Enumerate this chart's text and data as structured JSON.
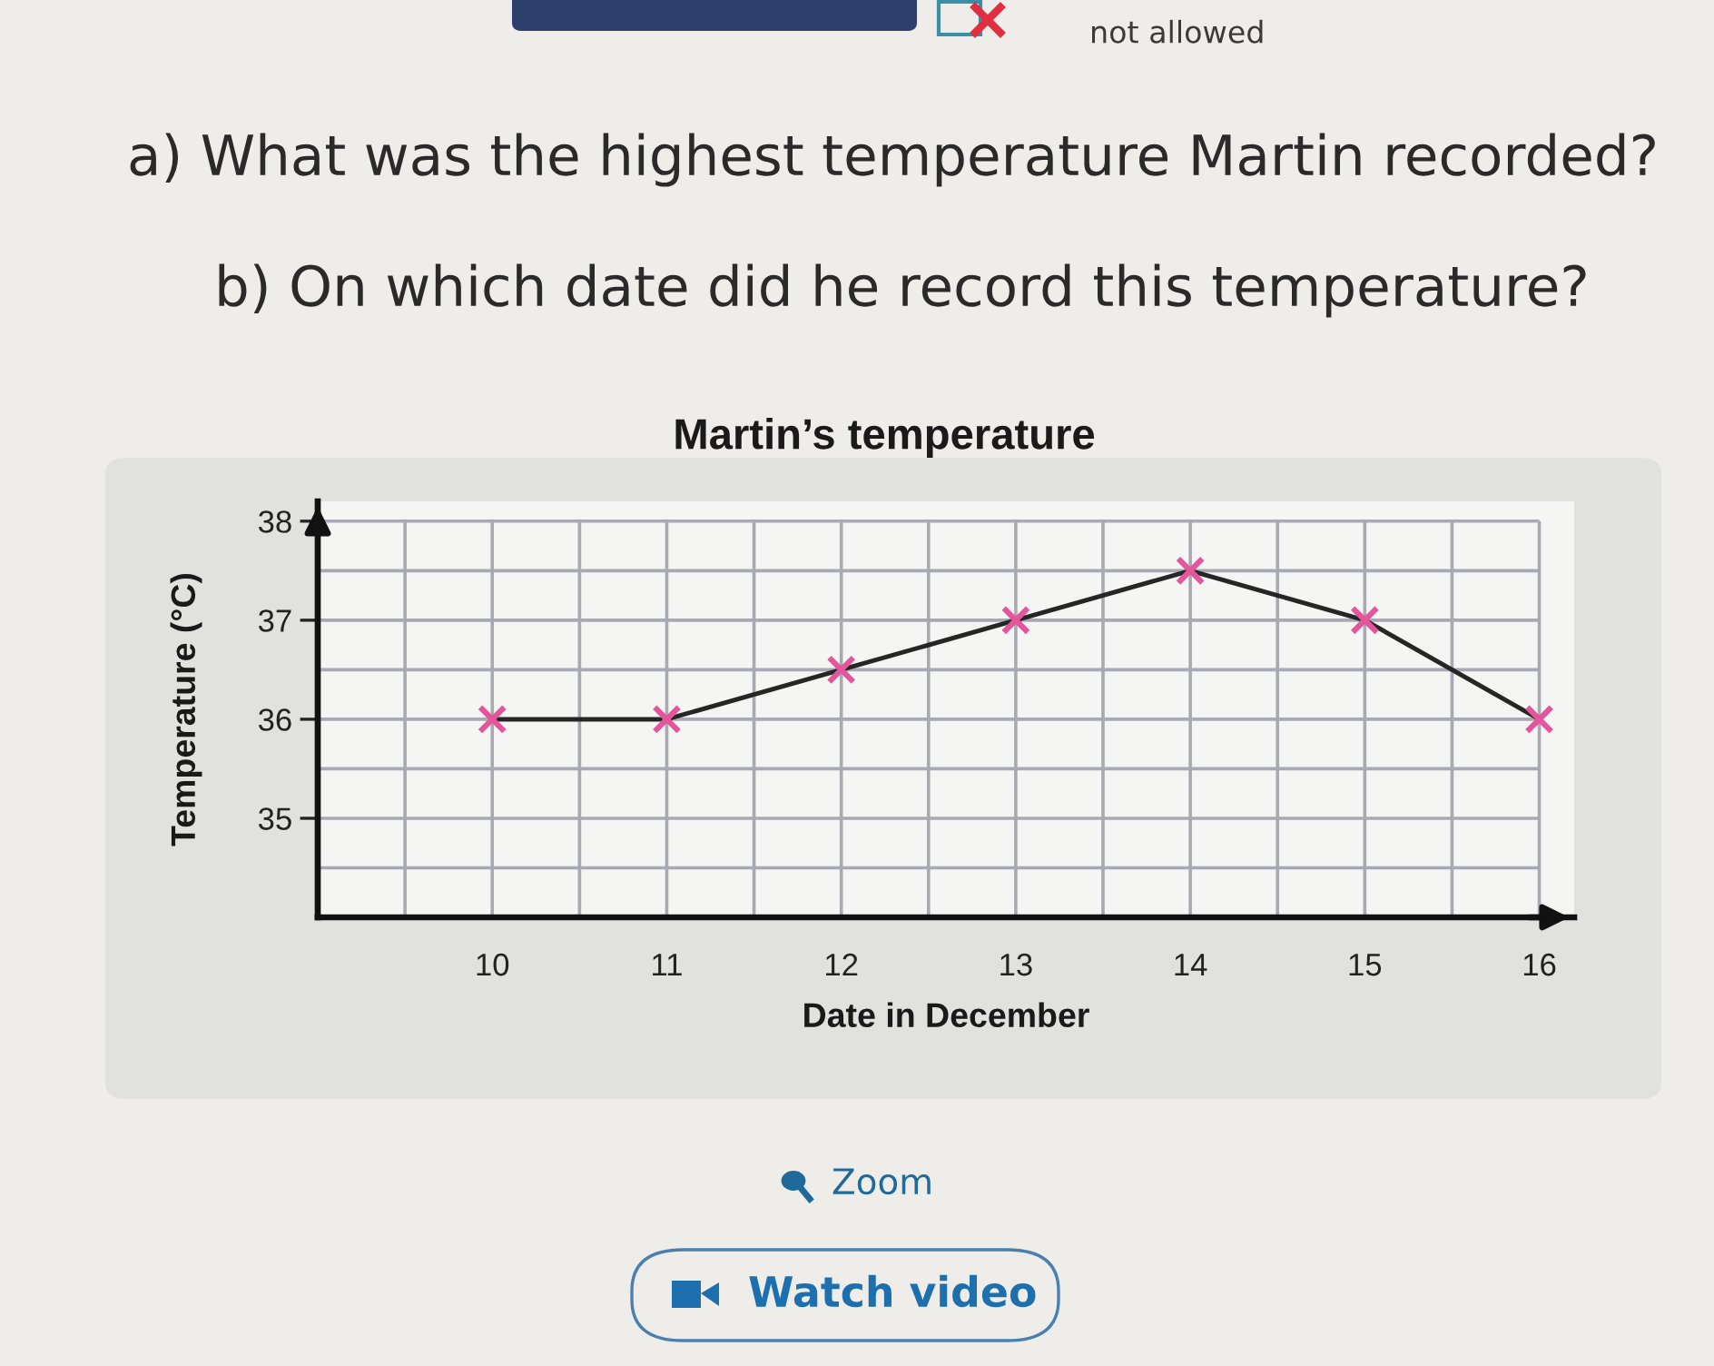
{
  "chart_data": {
    "type": "line",
    "title": "Martin’s temperature",
    "xlabel": "Date in December",
    "ylabel": "Temperature (°C)",
    "annotations": [
      "a) What was the highest temperature Martin recorded?",
      "b) On which date did he record this temperature?",
      "not allowed",
      "Zoom",
      "Watch video"
    ],
    "x": [
      10,
      11,
      12,
      13,
      14,
      15,
      16
    ],
    "series": [
      {
        "color": "#262626",
        "values": [
          36.0,
          36.0,
          36.5,
          37.0,
          37.5,
          37.0,
          36.0
        ],
        "marker": "none"
      },
      {
        "type": "scatter",
        "color": "#e5559b",
        "values": [
          36.0,
          36.0,
          36.5,
          37.0,
          37.5,
          37.0,
          36.0
        ],
        "marker": "cross"
      }
    ],
    "xlim": [
      9,
      16.2
    ],
    "ylim": [
      34,
      38.2
    ],
    "xticks": [
      {
        "value": 9.5,
        "label": null
      },
      10,
      {
        "value": 10.5,
        "label": null
      },
      11,
      {
        "value": 11.5,
        "label": null
      },
      12,
      {
        "value": 12.5,
        "label": null
      },
      13,
      {
        "value": 13.5,
        "label": null
      },
      14,
      {
        "value": 14.5,
        "label": null
      },
      15,
      {
        "value": 15.5,
        "label": null
      },
      16
    ],
    "yticks": [
      {
        "value": 34.5,
        "label": null
      },
      35,
      {
        "value": 35.5,
        "label": null
      },
      36,
      {
        "value": 36.5,
        "label": null
      },
      37,
      {
        "value": 37.5,
        "label": null
      },
      38
    ],
    "grid": true
  }
}
